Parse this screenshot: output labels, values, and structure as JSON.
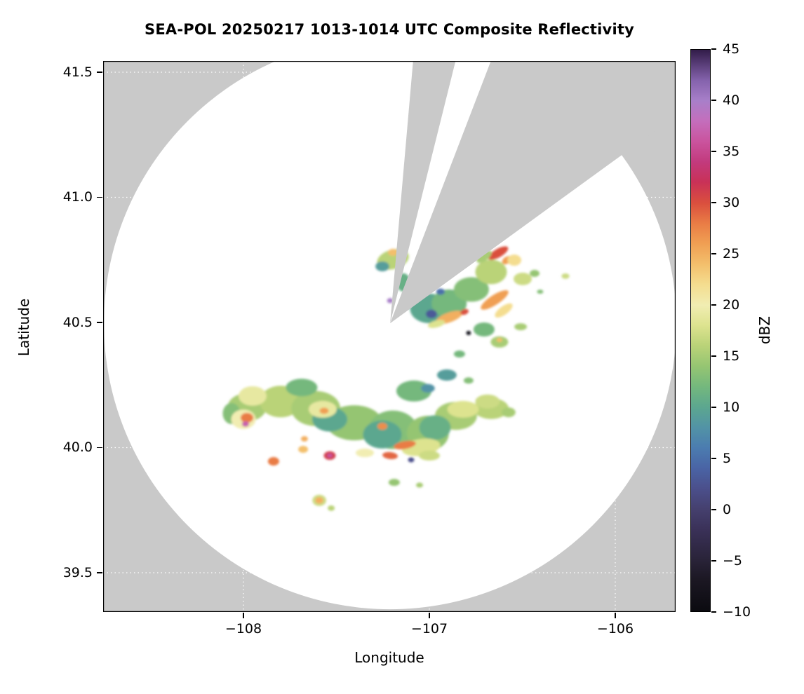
{
  "title": "SEA-POL 20250217 1013-1014 UTC Composite Reflectivity",
  "axes": {
    "xlabel": "Longitude",
    "ylabel": "Latitude",
    "xlim": [
      -108.7547,
      -105.6755
    ],
    "ylim": [
      39.3431,
      41.5448
    ],
    "xticks": [
      {
        "v": -108,
        "label": "−108"
      },
      {
        "v": -107,
        "label": "−107"
      },
      {
        "v": -106,
        "label": "−106"
      }
    ],
    "yticks": [
      {
        "v": 41.5,
        "label": "41.5"
      },
      {
        "v": 41.0,
        "label": "41.0"
      },
      {
        "v": 40.5,
        "label": "40.5"
      },
      {
        "v": 40.0,
        "label": "40.0"
      },
      {
        "v": 39.5,
        "label": "39.5"
      }
    ],
    "background_color": "#c9c9c9",
    "grid_color": "#ffffff"
  },
  "colorbar": {
    "label": "dBZ",
    "min": -10,
    "max": 45,
    "ticks": [
      {
        "v": 45,
        "label": "45"
      },
      {
        "v": 40,
        "label": "40"
      },
      {
        "v": 35,
        "label": "35"
      },
      {
        "v": 30,
        "label": "30"
      },
      {
        "v": 25,
        "label": "25"
      },
      {
        "v": 20,
        "label": "20"
      },
      {
        "v": 15,
        "label": "15"
      },
      {
        "v": 10,
        "label": "10"
      },
      {
        "v": 5,
        "label": "5"
      },
      {
        "v": 0,
        "label": "0"
      },
      {
        "v": -5,
        "label": "−5"
      },
      {
        "v": -10,
        "label": "−10"
      }
    ],
    "stops": [
      {
        "v": -10,
        "c": "#0b0b10"
      },
      {
        "v": -7,
        "c": "#1b1722"
      },
      {
        "v": -5,
        "c": "#292338"
      },
      {
        "v": -2,
        "c": "#3a3158"
      },
      {
        "v": 0,
        "c": "#45406e"
      },
      {
        "v": 2,
        "c": "#4b4f8b"
      },
      {
        "v": 4,
        "c": "#4a64a5"
      },
      {
        "v": 6,
        "c": "#4b7cb0"
      },
      {
        "v": 8,
        "c": "#5293a6"
      },
      {
        "v": 10,
        "c": "#5ca78f"
      },
      {
        "v": 12,
        "c": "#74b87d"
      },
      {
        "v": 14,
        "c": "#95c572"
      },
      {
        "v": 16,
        "c": "#bad378"
      },
      {
        "v": 18,
        "c": "#dde38f"
      },
      {
        "v": 20,
        "c": "#f1edb2"
      },
      {
        "v": 22,
        "c": "#f4dd8f"
      },
      {
        "v": 24,
        "c": "#f3bf6c"
      },
      {
        "v": 26,
        "c": "#f09f53"
      },
      {
        "v": 28,
        "c": "#e97c45"
      },
      {
        "v": 30,
        "c": "#da4f3e"
      },
      {
        "v": 32,
        "c": "#c93157"
      },
      {
        "v": 34,
        "c": "#c23a7d"
      },
      {
        "v": 36,
        "c": "#ca539d"
      },
      {
        "v": 38,
        "c": "#c46ebc"
      },
      {
        "v": 40,
        "c": "#a87fc9"
      },
      {
        "v": 42,
        "c": "#8563ad"
      },
      {
        "v": 45,
        "c": "#321c49"
      }
    ]
  },
  "chart_data": {
    "type": "heatmap",
    "title": "SEA-POL 20250217 1013-1014 UTC Composite Reflectivity",
    "xlabel": "Longitude",
    "ylabel": "Latitude",
    "units": "dBZ",
    "value_range": [
      -10,
      45
    ],
    "radar": {
      "center_lon": -107.211,
      "center_lat": 40.497,
      "coverage_radius_deg_lat": 1.143,
      "blocked_sectors_deg_from_north": [
        [
          5,
          14
        ],
        [
          21,
          54
        ]
      ],
      "coverage_color": "#ffffff",
      "nodata_color": "#c9c9c9"
    },
    "echo_format": [
      "lon",
      "lat",
      "width_deg",
      "height_deg",
      "rotation_deg",
      "dbz"
    ],
    "echoes": [
      [
        -107.981,
        40.161,
        0.208,
        0.112,
        0,
        15
      ],
      [
        -107.8,
        40.184,
        0.226,
        0.126,
        0,
        16
      ],
      [
        -107.611,
        40.156,
        0.264,
        0.14,
        0,
        15
      ],
      [
        -107.404,
        40.099,
        0.302,
        0.14,
        0,
        14
      ],
      [
        -107.196,
        40.071,
        0.264,
        0.154,
        0,
        13
      ],
      [
        -107.008,
        40.057,
        0.226,
        0.14,
        0,
        14
      ],
      [
        -106.857,
        40.127,
        0.226,
        0.112,
        0,
        15
      ],
      [
        -106.668,
        40.156,
        0.189,
        0.084,
        0,
        16
      ],
      [
        -107.083,
        40.226,
        0.189,
        0.084,
        0,
        12
      ],
      [
        -107.687,
        40.24,
        0.17,
        0.07,
        0,
        12
      ],
      [
        -108.064,
        40.136,
        0.094,
        0.084,
        0,
        13
      ],
      [
        -107.536,
        40.113,
        0.189,
        0.098,
        0,
        10
      ],
      [
        -107.253,
        40.052,
        0.208,
        0.112,
        0,
        10
      ],
      [
        -106.97,
        40.08,
        0.17,
        0.098,
        0,
        11
      ],
      [
        -107.951,
        40.206,
        0.151,
        0.078,
        0,
        19
      ],
      [
        -108.0,
        40.113,
        0.132,
        0.078,
        0,
        20
      ],
      [
        -107.574,
        40.153,
        0.151,
        0.067,
        0,
        19
      ],
      [
        -107.045,
        40.001,
        0.208,
        0.067,
        -8,
        18
      ],
      [
        -106.819,
        40.153,
        0.17,
        0.067,
        0,
        18
      ],
      [
        -106.687,
        40.184,
        0.132,
        0.056,
        0,
        17
      ],
      [
        -106.574,
        40.141,
        0.075,
        0.039,
        0,
        15
      ],
      [
        -107.981,
        40.119,
        0.068,
        0.039,
        0,
        28
      ],
      [
        -107.989,
        40.094,
        0.038,
        0.022,
        0,
        37
      ],
      [
        -107.566,
        40.147,
        0.049,
        0.025,
        0,
        26
      ],
      [
        -107.253,
        40.085,
        0.053,
        0.028,
        0,
        27
      ],
      [
        -107.132,
        40.01,
        0.121,
        0.031,
        -10,
        28
      ],
      [
        -107.536,
        39.968,
        0.064,
        0.034,
        0,
        31
      ],
      [
        -107.536,
        39.968,
        0.03,
        0.017,
        0,
        36
      ],
      [
        -107.838,
        39.945,
        0.06,
        0.034,
        0,
        28
      ],
      [
        -107.679,
        39.993,
        0.053,
        0.028,
        0,
        24
      ],
      [
        -107.347,
        39.979,
        0.098,
        0.034,
        0,
        20
      ],
      [
        -107.211,
        39.968,
        0.083,
        0.028,
        6,
        29
      ],
      [
        -107.0,
        39.968,
        0.113,
        0.039,
        0,
        17
      ],
      [
        -107.098,
        39.951,
        0.034,
        0.02,
        0,
        2
      ],
      [
        -107.672,
        40.035,
        0.038,
        0.022,
        0,
        25
      ],
      [
        -107.592,
        39.789,
        0.075,
        0.045,
        0,
        17
      ],
      [
        -107.592,
        39.789,
        0.042,
        0.025,
        0,
        25
      ],
      [
        -107.528,
        39.758,
        0.038,
        0.022,
        0,
        16
      ],
      [
        -107.189,
        39.861,
        0.06,
        0.028,
        0,
        14
      ],
      [
        -107.053,
        39.85,
        0.038,
        0.02,
        0,
        15
      ],
      [
        -107.196,
        40.752,
        0.174,
        0.078,
        -15,
        16
      ],
      [
        -107.253,
        40.724,
        0.075,
        0.039,
        0,
        9
      ],
      [
        -107.196,
        40.78,
        0.053,
        0.028,
        0,
        24
      ],
      [
        -107.0,
        40.556,
        0.208,
        0.118,
        0,
        10
      ],
      [
        -106.894,
        40.576,
        0.189,
        0.112,
        0,
        12
      ],
      [
        -106.989,
        40.534,
        0.06,
        0.034,
        0,
        3
      ],
      [
        -106.94,
        40.623,
        0.045,
        0.025,
        0,
        5
      ],
      [
        -106.774,
        40.632,
        0.189,
        0.098,
        0,
        13
      ],
      [
        -106.668,
        40.702,
        0.17,
        0.098,
        0,
        16
      ],
      [
        -106.63,
        40.777,
        0.121,
        0.034,
        -30,
        30
      ],
      [
        -106.581,
        40.749,
        0.06,
        0.028,
        -30,
        26
      ],
      [
        -106.543,
        40.749,
        0.075,
        0.045,
        0,
        22
      ],
      [
        -106.649,
        40.59,
        0.174,
        0.039,
        -33,
        26
      ],
      [
        -106.6,
        40.548,
        0.113,
        0.034,
        -36,
        22
      ],
      [
        -106.498,
        40.674,
        0.098,
        0.05,
        0,
        17
      ],
      [
        -106.434,
        40.696,
        0.053,
        0.028,
        0,
        14
      ],
      [
        -106.268,
        40.685,
        0.042,
        0.022,
        0,
        17
      ],
      [
        -106.706,
        40.472,
        0.113,
        0.056,
        0,
        12
      ],
      [
        -106.623,
        40.422,
        0.094,
        0.045,
        0,
        15
      ],
      [
        -106.623,
        40.43,
        0.03,
        0.017,
        0,
        24
      ],
      [
        -106.789,
        40.458,
        0.026,
        0.017,
        0,
        -9
      ],
      [
        -106.838,
        40.374,
        0.06,
        0.028,
        0,
        12
      ],
      [
        -106.906,
        40.29,
        0.106,
        0.045,
        0,
        9
      ],
      [
        -106.789,
        40.268,
        0.053,
        0.025,
        0,
        13
      ],
      [
        -107.008,
        40.237,
        0.075,
        0.034,
        0,
        8
      ],
      [
        -107.211,
        40.587,
        0.034,
        0.02,
        0,
        40
      ],
      [
        -107.14,
        40.66,
        0.075,
        0.073,
        0,
        11
      ],
      [
        -106.894,
        40.52,
        0.151,
        0.039,
        -20,
        25
      ],
      [
        -106.962,
        40.494,
        0.094,
        0.028,
        -15,
        18
      ],
      [
        -106.811,
        40.542,
        0.045,
        0.022,
        -20,
        30
      ],
      [
        -106.509,
        40.483,
        0.068,
        0.028,
        0,
        15
      ],
      [
        -106.404,
        40.623,
        0.034,
        0.017,
        0,
        13
      ],
      [
        -106.706,
        40.763,
        0.094,
        0.034,
        -36,
        15
      ]
    ]
  }
}
